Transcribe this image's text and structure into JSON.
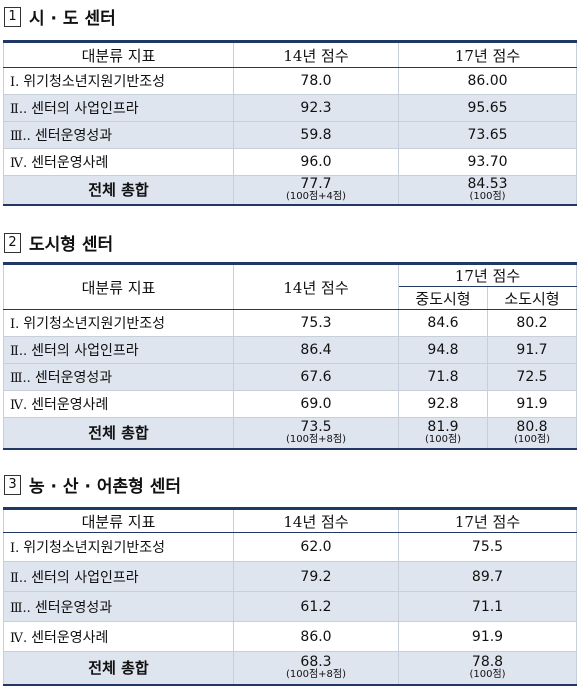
{
  "sections": [
    {
      "number": "1",
      "title": "시 · 도 센터",
      "table": {
        "headers": [
          "대분류 지표",
          "14년 점수",
          "17년 점수"
        ],
        "rows": [
          {
            "roman": "Ⅰ.",
            "label": "위기청소년지원기반조성",
            "values": [
              "78.0",
              "86.00"
            ]
          },
          {
            "roman": "Ⅱ..",
            "label": "센터의 사업인프라",
            "values": [
              "92.3",
              "95.65"
            ]
          },
          {
            "roman": "Ⅲ..",
            "label": "센터운영성과",
            "values": [
              "59.8",
              "73.65"
            ]
          },
          {
            "roman": "Ⅳ.",
            "label": "센터운영사례",
            "values": [
              "96.0",
              "93.70"
            ]
          }
        ],
        "total": {
          "label": "전체 총합",
          "values": [
            {
              "value": "77.7",
              "note": "(100점+4점)"
            },
            {
              "value": "84.53",
              "note": "(100점)"
            }
          ]
        }
      }
    },
    {
      "number": "2",
      "title": "도시형 센터",
      "table": {
        "headers": [
          "대분류 지표",
          "14년 점수",
          "17년 점수"
        ],
        "subheaders": [
          "중도시형",
          "소도시형"
        ],
        "rows": [
          {
            "roman": "Ⅰ.",
            "label": "위기청소년지원기반조성",
            "values": [
              "75.3",
              "84.6",
              "80.2"
            ]
          },
          {
            "roman": "Ⅱ..",
            "label": "센터의 사업인프라",
            "values": [
              "86.4",
              "94.8",
              "91.7"
            ]
          },
          {
            "roman": "Ⅲ..",
            "label": "센터운영성과",
            "values": [
              "67.6",
              "71.8",
              "72.5"
            ]
          },
          {
            "roman": "Ⅳ.",
            "label": "센터운영사례",
            "values": [
              "69.0",
              "92.8",
              "91.9"
            ]
          }
        ],
        "total": {
          "label": "전체 총합",
          "values": [
            {
              "value": "73.5",
              "note": "(100점+8점)"
            },
            {
              "value": "81.9",
              "note": "(100점)"
            },
            {
              "value": "80.8",
              "note": "(100점)"
            }
          ]
        }
      }
    },
    {
      "number": "3",
      "title": "농 · 산 · 어촌형 센터",
      "table": {
        "headers": [
          "대분류 지표",
          "14년 점수",
          "17년 점수"
        ],
        "rows": [
          {
            "roman": "Ⅰ.",
            "label": "위기청소년지원기반조성",
            "values": [
              "62.0",
              "75.5"
            ]
          },
          {
            "roman": "Ⅱ..",
            "label": "센터의 사업인프라",
            "values": [
              "79.2",
              "89.7"
            ]
          },
          {
            "roman": "Ⅲ..",
            "label": "센터운영성과",
            "values": [
              "61.2",
              "71.1"
            ]
          },
          {
            "roman": "Ⅳ.",
            "label": "센터운영사례",
            "values": [
              "86.0",
              "91.9"
            ]
          }
        ],
        "total": {
          "label": "전체 총합",
          "values": [
            {
              "value": "68.3",
              "note": "(100점+8점)"
            },
            {
              "value": "78.8",
              "note": "(100점)"
            }
          ]
        }
      }
    }
  ]
}
